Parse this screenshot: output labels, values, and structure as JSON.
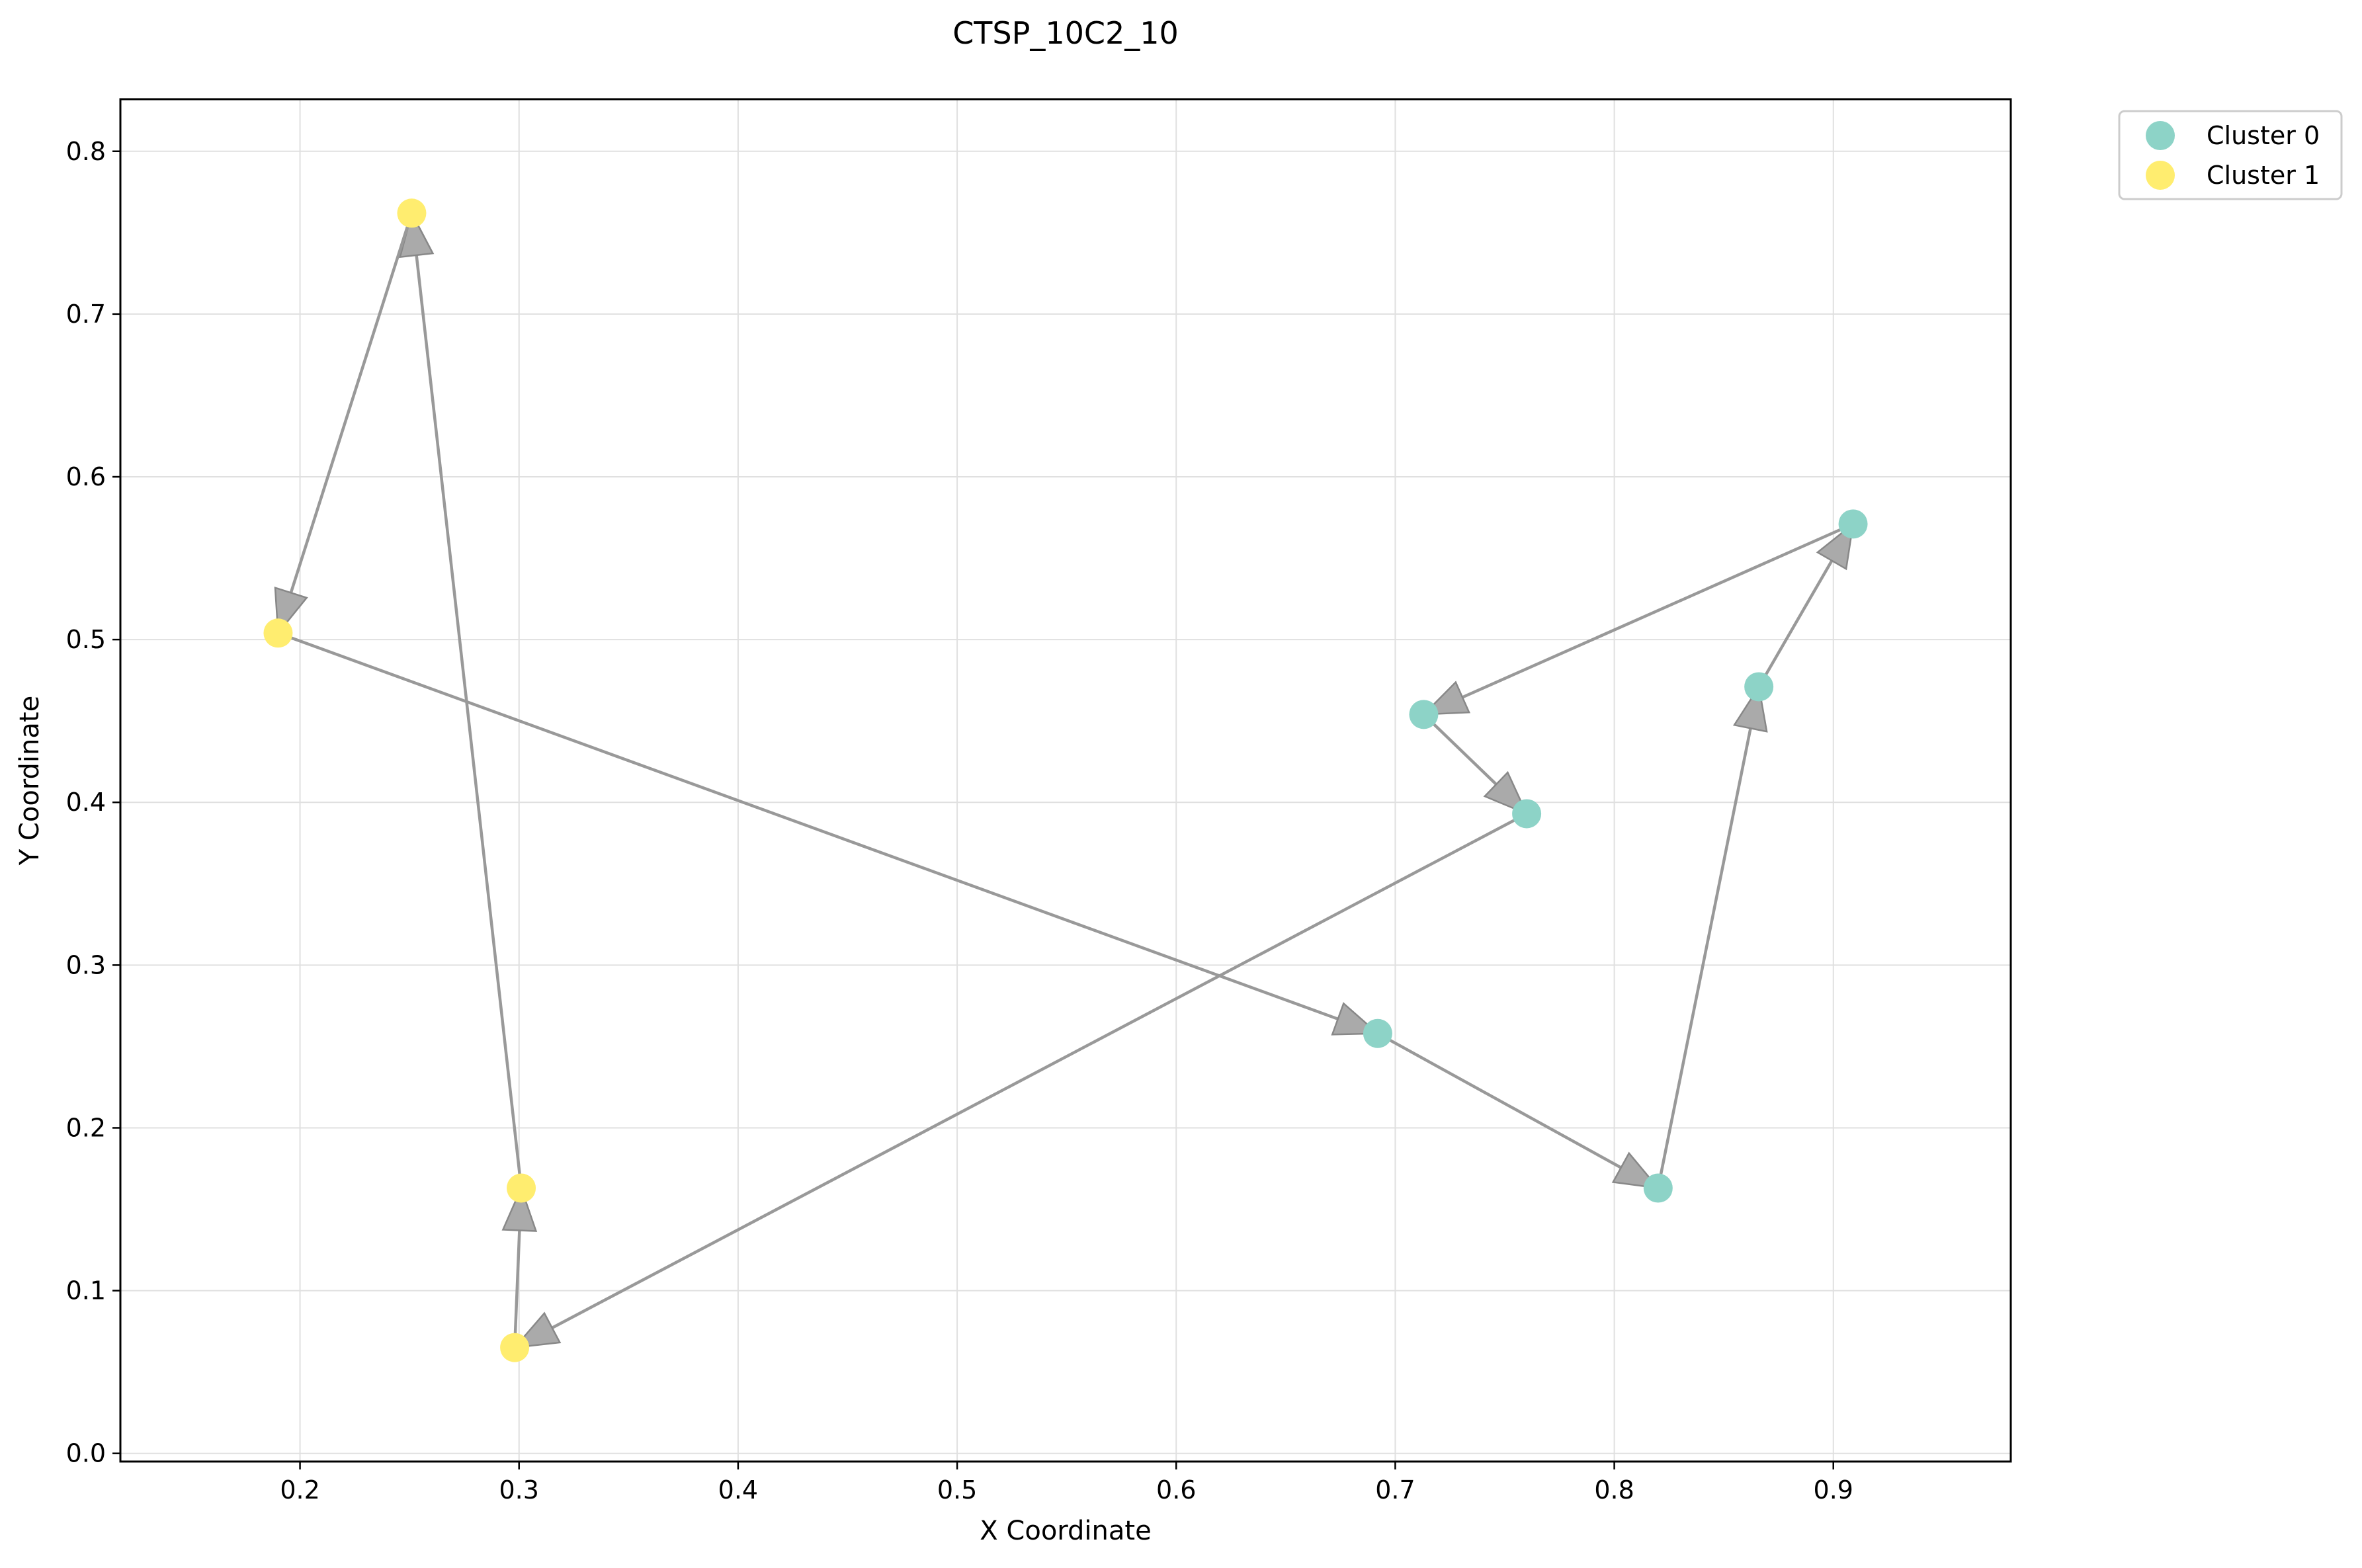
{
  "chart_data": {
    "type": "scatter",
    "title": "CTSP_10C2_10",
    "xlabel": "X Coordinate",
    "ylabel": "Y Coordinate",
    "xlim": [
      0.118,
      0.981
    ],
    "ylim": [
      -0.005,
      0.832
    ],
    "x_ticks": [
      0.2,
      0.3,
      0.4,
      0.5,
      0.6,
      0.7,
      0.8,
      0.9
    ],
    "y_ticks": [
      0.0,
      0.1,
      0.2,
      0.3,
      0.4,
      0.5,
      0.6,
      0.7,
      0.8
    ],
    "grid": true,
    "legend_position": "outside-top-right",
    "series": [
      {
        "name": "Cluster 0",
        "color": "#8dd3c7",
        "points": [
          {
            "x": 0.692,
            "y": 0.258
          },
          {
            "x": 0.82,
            "y": 0.163
          },
          {
            "x": 0.866,
            "y": 0.471
          },
          {
            "x": 0.909,
            "y": 0.571
          },
          {
            "x": 0.713,
            "y": 0.454
          },
          {
            "x": 0.76,
            "y": 0.393
          }
        ]
      },
      {
        "name": "Cluster 1",
        "color": "#ffed6f",
        "points": [
          {
            "x": 0.298,
            "y": 0.065
          },
          {
            "x": 0.301,
            "y": 0.163
          },
          {
            "x": 0.251,
            "y": 0.762
          },
          {
            "x": 0.19,
            "y": 0.504
          }
        ]
      }
    ],
    "route": [
      {
        "x": 0.298,
        "y": 0.065
      },
      {
        "x": 0.301,
        "y": 0.163
      },
      {
        "x": 0.251,
        "y": 0.762
      },
      {
        "x": 0.19,
        "y": 0.504
      },
      {
        "x": 0.692,
        "y": 0.258
      },
      {
        "x": 0.82,
        "y": 0.163
      },
      {
        "x": 0.866,
        "y": 0.471
      },
      {
        "x": 0.909,
        "y": 0.571
      },
      {
        "x": 0.713,
        "y": 0.454
      },
      {
        "x": 0.76,
        "y": 0.393
      },
      {
        "x": 0.298,
        "y": 0.065
      }
    ],
    "route_color": "#999999",
    "arrow_fill": "#aaaaaa"
  }
}
